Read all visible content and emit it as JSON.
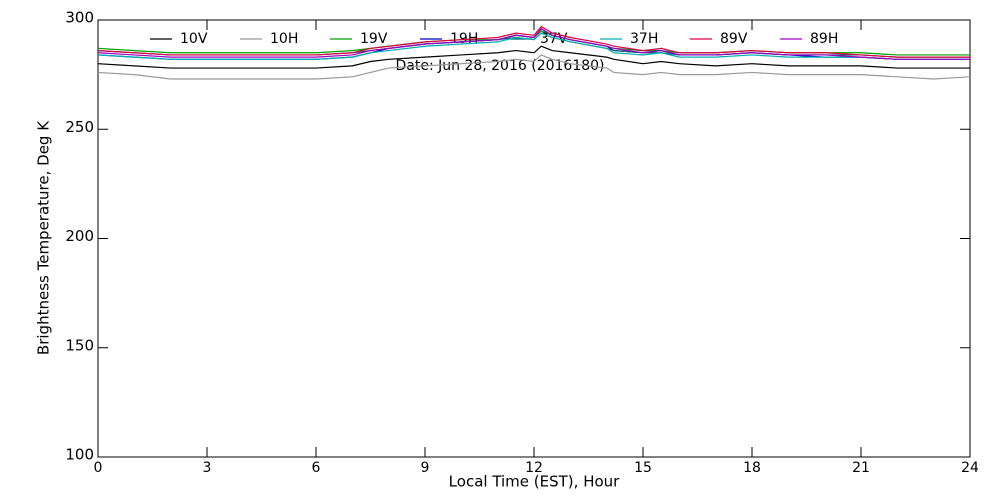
{
  "chart_data": {
    "type": "line",
    "title": "Date: Jun 28, 2016 (2016180)",
    "x_label": "Local Time (EST), Hour",
    "y_label": "Brightness Temperature, Deg K",
    "xlim": [
      0,
      24
    ],
    "xticks": [
      0,
      3,
      6,
      9,
      12,
      15,
      18,
      21,
      24
    ],
    "ylim": [
      100,
      300
    ],
    "yticks": [
      100,
      150,
      200,
      250,
      300
    ],
    "x": [
      0,
      1,
      2,
      3,
      4,
      5,
      6,
      7,
      7.5,
      8,
      9,
      10,
      11,
      11.5,
      12,
      12.2,
      12.5,
      13,
      14,
      14.2,
      15,
      15.5,
      16,
      17,
      18,
      19,
      20,
      21,
      22,
      23,
      24
    ],
    "series": [
      {
        "name": "10V",
        "color": "#000000",
        "values": [
          280,
          279,
          278,
          278,
          278,
          278,
          278,
          279,
          281,
          282,
          283,
          284,
          285,
          286,
          285,
          288,
          286,
          285,
          283,
          282,
          280,
          281,
          280,
          279,
          280,
          279,
          279,
          279,
          278,
          278,
          278
        ]
      },
      {
        "name": "10H",
        "color": "#999999",
        "values": [
          276,
          275,
          273,
          273,
          273,
          273,
          273,
          274,
          276,
          278,
          279,
          280,
          281,
          282,
          281,
          284,
          282,
          280,
          278,
          276,
          275,
          276,
          275,
          275,
          276,
          275,
          275,
          275,
          274,
          273,
          274
        ]
      },
      {
        "name": "19V",
        "color": "#00a000",
        "values": [
          287,
          286,
          285,
          285,
          285,
          285,
          285,
          286,
          287,
          288,
          290,
          291,
          291,
          293,
          292,
          295,
          293,
          291,
          288,
          287,
          286,
          286,
          285,
          285,
          286,
          285,
          285,
          285,
          284,
          284,
          284
        ]
      },
      {
        "name": "19H",
        "color": "#0000cc",
        "values": [
          284,
          283,
          282,
          282,
          282,
          282,
          282,
          283,
          285,
          287,
          289,
          290,
          291,
          293,
          292,
          296,
          293,
          291,
          288,
          286,
          285,
          286,
          284,
          284,
          285,
          284,
          283,
          283,
          282,
          282,
          282
        ]
      },
      {
        "name": "37V",
        "color": "#006070",
        "values": [
          286,
          285,
          284,
          284,
          284,
          284,
          284,
          285,
          286,
          287,
          289,
          290,
          291,
          292,
          291,
          294,
          292,
          290,
          287,
          286,
          285,
          285,
          284,
          284,
          285,
          284,
          284,
          284,
          283,
          283,
          283
        ]
      },
      {
        "name": "37H",
        "color": "#00b0b0",
        "values": [
          284,
          283,
          282,
          282,
          282,
          282,
          282,
          283,
          285,
          286,
          288,
          289,
          290,
          292,
          291,
          294,
          292,
          290,
          287,
          285,
          284,
          285,
          283,
          283,
          284,
          283,
          283,
          283,
          282,
          282,
          282
        ]
      },
      {
        "name": "89V",
        "color": "#e00040",
        "values": [
          286,
          285,
          284,
          284,
          284,
          284,
          284,
          285,
          287,
          288,
          290,
          291,
          292,
          294,
          293,
          297,
          294,
          292,
          289,
          288,
          286,
          287,
          285,
          285,
          286,
          285,
          285,
          284,
          283,
          283,
          283
        ]
      },
      {
        "name": "89H",
        "color": "#a000c0",
        "values": [
          285,
          284,
          283,
          283,
          283,
          283,
          283,
          284,
          286,
          287,
          289,
          290,
          291,
          293,
          292,
          296,
          293,
          291,
          288,
          287,
          285,
          286,
          284,
          284,
          285,
          284,
          284,
          283,
          282,
          282,
          282
        ]
      }
    ]
  }
}
